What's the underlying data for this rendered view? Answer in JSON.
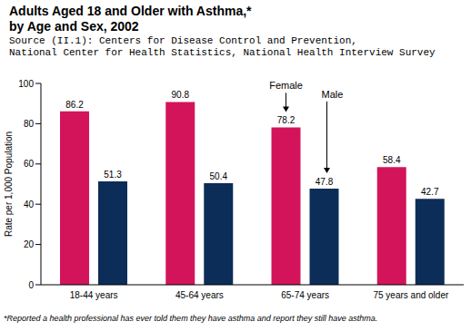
{
  "chart_data": {
    "type": "bar",
    "title": "Adults Aged 18 and Older with Asthma,*\nby Age and Sex, 2002",
    "subtitle": "Source (II.1): Centers for Disease Control and Prevention,\nNational Center for Health Statistics, National Health Interview Survey",
    "y_label": "Rate per 1,000 Population",
    "footnote": "*Reported a health professional has ever told them they have asthma and report they still have asthma.",
    "categories": [
      "18-44 years",
      "45-64 years",
      "65-74 years",
      "75 years and older"
    ],
    "series": [
      {
        "name": "Female",
        "color": "#d4145a",
        "values": [
          86.2,
          90.8,
          78.2,
          58.4
        ]
      },
      {
        "name": "Male",
        "color": "#0c2d58",
        "values": [
          51.3,
          50.4,
          47.8,
          42.7
        ]
      }
    ],
    "annotations": [
      {
        "text": "Female",
        "series": "Female",
        "category": "65-74 years"
      },
      {
        "text": "Male",
        "series": "Male",
        "category": "65-74 years"
      }
    ],
    "ylim": [
      0,
      100
    ],
    "yticks": [
      0,
      20,
      40,
      60,
      80,
      100
    ],
    "grid": false,
    "data_labels": true
  }
}
